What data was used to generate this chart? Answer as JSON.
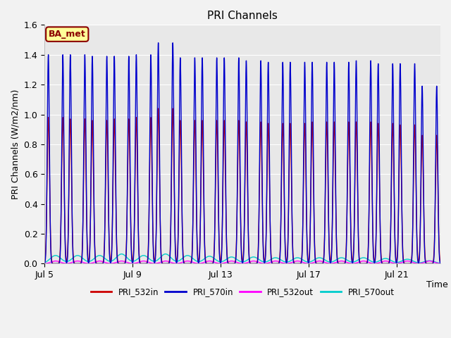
{
  "title": "PRI Channels",
  "ylabel": "PRI Channels (W/m2/nm)",
  "xlabel": "Time",
  "ylim": [
    0.0,
    1.6
  ],
  "bg_color": "#e8e8e8",
  "fig_color": "#f2f2f2",
  "series": [
    {
      "label": "PRI_532in",
      "color": "#cc0000",
      "lw": 1.0
    },
    {
      "label": "PRI_570in",
      "color": "#0000cc",
      "lw": 1.0
    },
    {
      "label": "PRI_532out",
      "color": "#ff00ff",
      "lw": 1.0
    },
    {
      "label": "PRI_570out",
      "color": "#00cccc",
      "lw": 1.0
    }
  ],
  "annotation_text": "BA_met",
  "annotation_bg": "#ffff99",
  "annotation_border": "#8b0000",
  "n_days": 18,
  "start_day": 5,
  "peaks_532in": [
    0.98,
    0.97,
    0.96,
    0.97,
    0.98,
    1.04,
    0.96,
    0.96,
    0.96,
    0.95,
    0.94,
    0.94,
    0.95,
    0.95,
    0.95,
    0.94,
    0.93,
    0.86
  ],
  "peaks_570in": [
    1.4,
    1.4,
    1.39,
    1.39,
    1.4,
    1.48,
    1.38,
    1.38,
    1.38,
    1.36,
    1.35,
    1.35,
    1.35,
    1.35,
    1.36,
    1.34,
    1.34,
    1.19
  ],
  "peaks_532out": [
    0.018,
    0.018,
    0.018,
    0.018,
    0.018,
    0.018,
    0.018,
    0.018,
    0.018,
    0.018,
    0.018,
    0.018,
    0.018,
    0.018,
    0.018,
    0.018,
    0.018,
    0.018
  ],
  "peaks_570out": [
    0.055,
    0.055,
    0.055,
    0.065,
    0.055,
    0.065,
    0.055,
    0.05,
    0.045,
    0.045,
    0.04,
    0.04,
    0.04,
    0.04,
    0.04,
    0.035,
    0.03,
    0.02
  ],
  "xtick_labels": [
    "Jul 5",
    "Jul 9",
    "Jul 13",
    "Jul 17",
    "Jul 21"
  ],
  "xtick_days": [
    0,
    4,
    8,
    12,
    16
  ]
}
